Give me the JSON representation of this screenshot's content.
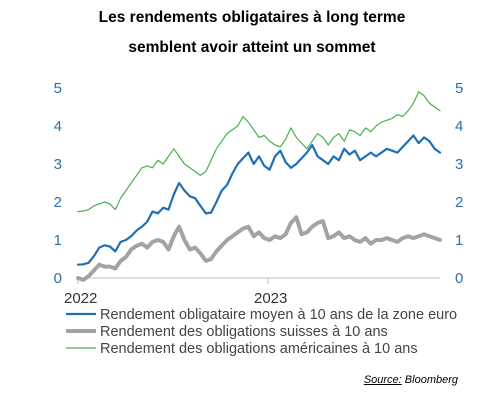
{
  "title_line1": "Les rendements obligataires à long terme",
  "title_line2": "semblent avoir atteint un sommet",
  "source_label": "Source:",
  "source_name": "Bloomberg",
  "chart_data": {
    "type": "line",
    "x_tick_labels": [
      "2022",
      "2023"
    ],
    "y_ticks": [
      "0",
      "1",
      "2",
      "3",
      "4",
      "5"
    ],
    "ylim": [
      0,
      5
    ],
    "grid": false,
    "legend_position": "bottom",
    "series": [
      {
        "name": "Rendement obligataire moyen à 10 ans de la zone euro",
        "color": "#1f6fb5",
        "values": [
          0.35,
          0.36,
          0.4,
          0.58,
          0.8,
          0.86,
          0.83,
          0.7,
          0.95,
          1.0,
          1.1,
          1.25,
          1.35,
          1.48,
          1.75,
          1.7,
          1.85,
          1.8,
          2.2,
          2.5,
          2.3,
          2.15,
          2.1,
          1.9,
          1.7,
          1.72,
          2.0,
          2.3,
          2.45,
          2.75,
          3.0,
          3.15,
          3.3,
          3.0,
          3.2,
          2.95,
          2.85,
          3.2,
          3.35,
          3.05,
          2.9,
          3.0,
          3.15,
          3.3,
          3.5,
          3.2,
          3.1,
          3.0,
          3.2,
          3.1,
          3.4,
          3.25,
          3.35,
          3.1,
          3.2,
          3.3,
          3.2,
          3.3,
          3.4,
          3.35,
          3.3,
          3.45,
          3.6,
          3.75,
          3.55,
          3.7,
          3.6,
          3.4,
          3.3
        ]
      },
      {
        "name": "Rendement des obligations suisses à 10 ans",
        "color": "#a3a3a3",
        "values": [
          0.0,
          -0.05,
          0.05,
          0.2,
          0.35,
          0.3,
          0.3,
          0.25,
          0.45,
          0.55,
          0.75,
          0.85,
          0.9,
          0.8,
          0.95,
          1.0,
          0.95,
          0.75,
          1.1,
          1.35,
          1.0,
          0.75,
          0.8,
          0.65,
          0.45,
          0.5,
          0.7,
          0.85,
          1.0,
          1.1,
          1.2,
          1.3,
          1.35,
          1.1,
          1.2,
          1.05,
          1.0,
          1.1,
          1.05,
          1.15,
          1.45,
          1.6,
          1.15,
          1.2,
          1.35,
          1.45,
          1.5,
          1.05,
          1.1,
          1.2,
          1.05,
          1.1,
          1.0,
          0.95,
          1.05,
          0.9,
          1.0,
          1.0,
          1.05,
          1.0,
          0.95,
          1.05,
          1.1,
          1.05,
          1.1,
          1.15,
          1.1,
          1.05,
          1.0
        ]
      },
      {
        "name": "Rendement des obligations américaines à 10 ans",
        "color": "#4caf50",
        "values": [
          1.75,
          1.76,
          1.8,
          1.9,
          1.95,
          2.0,
          1.95,
          1.8,
          2.1,
          2.3,
          2.5,
          2.7,
          2.9,
          2.95,
          2.9,
          3.1,
          3.0,
          3.2,
          3.4,
          3.2,
          3.0,
          2.9,
          2.8,
          2.7,
          2.8,
          3.1,
          3.4,
          3.6,
          3.8,
          3.9,
          4.0,
          4.25,
          4.1,
          3.9,
          3.7,
          3.75,
          3.6,
          3.5,
          3.45,
          3.65,
          3.95,
          3.7,
          3.55,
          3.4,
          3.6,
          3.8,
          3.7,
          3.5,
          3.7,
          3.8,
          3.6,
          3.9,
          3.85,
          3.75,
          3.95,
          3.85,
          4.0,
          4.1,
          4.15,
          4.2,
          4.3,
          4.25,
          4.4,
          4.6,
          4.9,
          4.8,
          4.6,
          4.5,
          4.4
        ]
      }
    ]
  }
}
